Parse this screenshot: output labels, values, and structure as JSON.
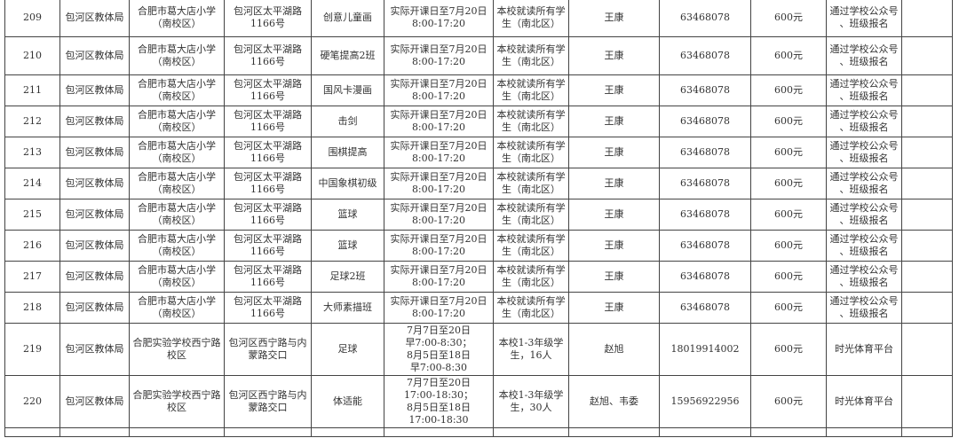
{
  "rows": [
    {
      "no": "209",
      "bureau": "包河区教体局",
      "school": "合肥市葛大店小学\n（南校区）",
      "address": "包河区太平湖路\n1166号",
      "course": "创意儿童画",
      "time": "实际开课日至7月20日\n8:00-17:20",
      "target": "本校就读所有学\n生（南北区）",
      "contact": "王康",
      "phone": "63468078",
      "fee": "600元",
      "signup": "通过学校公众号\n、班级报名",
      "note": ""
    },
    {
      "no": "210",
      "bureau": "包河区教体局",
      "school": "合肥市葛大店小学\n（南校区）",
      "address": "包河区太平湖路\n1166号",
      "course": "硬笔提高2班",
      "time": "实际开课日至7月20日\n8:00-17:20",
      "target": "本校就读所有学\n生（南北区）",
      "contact": "王康",
      "phone": "63468078",
      "fee": "600元",
      "signup": "通过学校公众号\n、班级报名",
      "note": ""
    },
    {
      "no": "211",
      "bureau": "包河区教体局",
      "school": "合肥市葛大店小学\n（南校区）",
      "address": "包河区太平湖路\n1166号",
      "course": "国风卡漫画",
      "time": "实际开课日至7月20日\n8:00-17:20",
      "target": "本校就读所有学\n生（南北区）",
      "contact": "王康",
      "phone": "63468078",
      "fee": "600元",
      "signup": "通过学校公众号\n、班级报名",
      "note": ""
    },
    {
      "no": "212",
      "bureau": "包河区教体局",
      "school": "合肥市葛大店小学\n（南校区）",
      "address": "包河区太平湖路\n1166号",
      "course": "击剑",
      "time": "实际开课日至7月20日\n8:00-17:20",
      "target": "本校就读所有学\n生（南北区）",
      "contact": "王康",
      "phone": "63468078",
      "fee": "600元",
      "signup": "通过学校公众号\n、班级报名",
      "note": ""
    },
    {
      "no": "213",
      "bureau": "包河区教体局",
      "school": "合肥市葛大店小学\n（南校区）",
      "address": "包河区太平湖路\n1166号",
      "course": "围棋提高",
      "time": "实际开课日至7月20日\n8:00-17:20",
      "target": "本校就读所有学\n生（南北区）",
      "contact": "王康",
      "phone": "63468078",
      "fee": "600元",
      "signup": "通过学校公众号\n、班级报名",
      "note": ""
    },
    {
      "no": "214",
      "bureau": "包河区教体局",
      "school": "合肥市葛大店小学\n（南校区）",
      "address": "包河区太平湖路\n1166号",
      "course": "中国象棋初级",
      "time": "实际开课日至7月20日\n8:00-17:20",
      "target": "本校就读所有学\n生（南北区）",
      "contact": "王康",
      "phone": "63468078",
      "fee": "600元",
      "signup": "通过学校公众号\n、班级报名",
      "note": ""
    },
    {
      "no": "215",
      "bureau": "包河区教体局",
      "school": "合肥市葛大店小学\n（南校区）",
      "address": "包河区太平湖路\n1166号",
      "course": "篮球",
      "time": "实际开课日至7月20日\n8:00-17:20",
      "target": "本校就读所有学\n生（南北区）",
      "contact": "王康",
      "phone": "63468078",
      "fee": "600元",
      "signup": "通过学校公众号\n、班级报名",
      "note": ""
    },
    {
      "no": "216",
      "bureau": "包河区教体局",
      "school": "合肥市葛大店小学\n（南校区）",
      "address": "包河区太平湖路\n1166号",
      "course": "篮球",
      "time": "实际开课日至7月20日\n8:00-17:20",
      "target": "本校就读所有学\n生（南北区）",
      "contact": "王康",
      "phone": "63468078",
      "fee": "600元",
      "signup": "通过学校公众号\n、班级报名",
      "note": ""
    },
    {
      "no": "217",
      "bureau": "包河区教体局",
      "school": "合肥市葛大店小学\n（南校区）",
      "address": "包河区太平湖路\n1166号",
      "course": "足球2班",
      "time": "实际开课日至7月20日\n8:00-17:20",
      "target": "本校就读所有学\n生（南北区）",
      "contact": "王康",
      "phone": "63468078",
      "fee": "600元",
      "signup": "通过学校公众号\n、班级报名",
      "note": ""
    },
    {
      "no": "218",
      "bureau": "包河区教体局",
      "school": "合肥市葛大店小学\n（南校区）",
      "address": "包河区太平湖路\n1166号",
      "course": "大师素描班",
      "time": "实际开课日至7月20日\n8:00-17:20",
      "target": "本校就读所有学\n生（南北区）",
      "contact": "王康",
      "phone": "63468078",
      "fee": "600元",
      "signup": "通过学校公众号\n、班级报名",
      "note": ""
    },
    {
      "no": "219",
      "bureau": "包河区教体局",
      "school": "合肥实验学校西宁路\n校区",
      "address": "包河区西宁路与内\n蒙路交口",
      "course": "足球",
      "time": "7月7日至20日\n早7:00-8:30；\n8月5日至18日\n早7:00-8:30",
      "target": "本校1-3年级学\n生，16人",
      "contact": "赵旭",
      "phone": "18019914002",
      "fee": "600元",
      "signup": "时光体育平台",
      "note": ""
    },
    {
      "no": "220",
      "bureau": "包河区教体局",
      "school": "合肥实验学校西宁路\n校区",
      "address": "包河区西宁路与内\n蒙路交口",
      "course": "体适能",
      "time": "7月7日至20日\n17:00-18:30；\n8月5日至18日\n17:00-18:30",
      "target": "本校1-3年级学\n生，30人",
      "contact": "赵旭、韦委",
      "phone": "15956922956",
      "fee": "600元",
      "signup": "时光体育平台",
      "note": ""
    }
  ]
}
